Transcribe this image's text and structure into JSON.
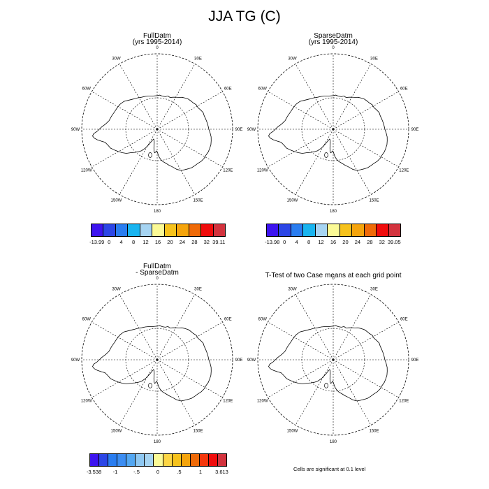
{
  "title": "JJA TG (C)",
  "panels": [
    {
      "title_line1": "FullDatm",
      "title_line2": "(yrs 1995-2014)"
    },
    {
      "title_line1": "SparseDatm",
      "title_line2": "(yrs 1995-2014)"
    },
    {
      "title_line1": "FullDatm",
      "title_line2": "- SparseDatm"
    },
    {
      "title_line1": "T-Test of two Case means at each grid point",
      "title_line2": ""
    }
  ],
  "longitude_labels": [
    "0",
    "30E",
    "60E",
    "90E",
    "120E",
    "150E",
    "180",
    "150W",
    "120W",
    "90W",
    "60W",
    "30W"
  ],
  "colorbars": [
    {
      "labels": [
        "-13.99",
        "0",
        "4",
        "8",
        "12",
        "16",
        "20",
        "24",
        "28",
        "32",
        "39.11"
      ],
      "colors": [
        "#3d14ef",
        "#2c46e6",
        "#2a7df0",
        "#18b4f0",
        "#a6d4f2",
        "#fbfa96",
        "#f6c21c",
        "#f5a40c",
        "#ef6a08",
        "#f00c0c",
        "#d3333e"
      ]
    },
    {
      "labels": [
        "-13.98",
        "0",
        "4",
        "8",
        "12",
        "16",
        "20",
        "24",
        "28",
        "32",
        "39.05"
      ],
      "colors": [
        "#3d14ef",
        "#2c46e6",
        "#2a7df0",
        "#18b4f0",
        "#a6d4f2",
        "#fbfa96",
        "#f6c21c",
        "#f5a40c",
        "#ef6a08",
        "#f00c0c",
        "#d3333e"
      ]
    },
    {
      "labels": [
        "-3.538",
        "-1",
        "-.5",
        "0",
        ".5",
        "1",
        "3.613"
      ],
      "colors": [
        "#3d14ef",
        "#2c46e6",
        "#2a7df0",
        "#3c8df2",
        "#53a7f2",
        "#8fc8f2",
        "#a6d4f2",
        "#fbfa96",
        "#fdd645",
        "#f6c21c",
        "#f5a40c",
        "#ef6a08",
        "#f5370c",
        "#f00c0c",
        "#d3333e"
      ]
    }
  ],
  "footnote": "Cells are significant at 0.1 level"
}
